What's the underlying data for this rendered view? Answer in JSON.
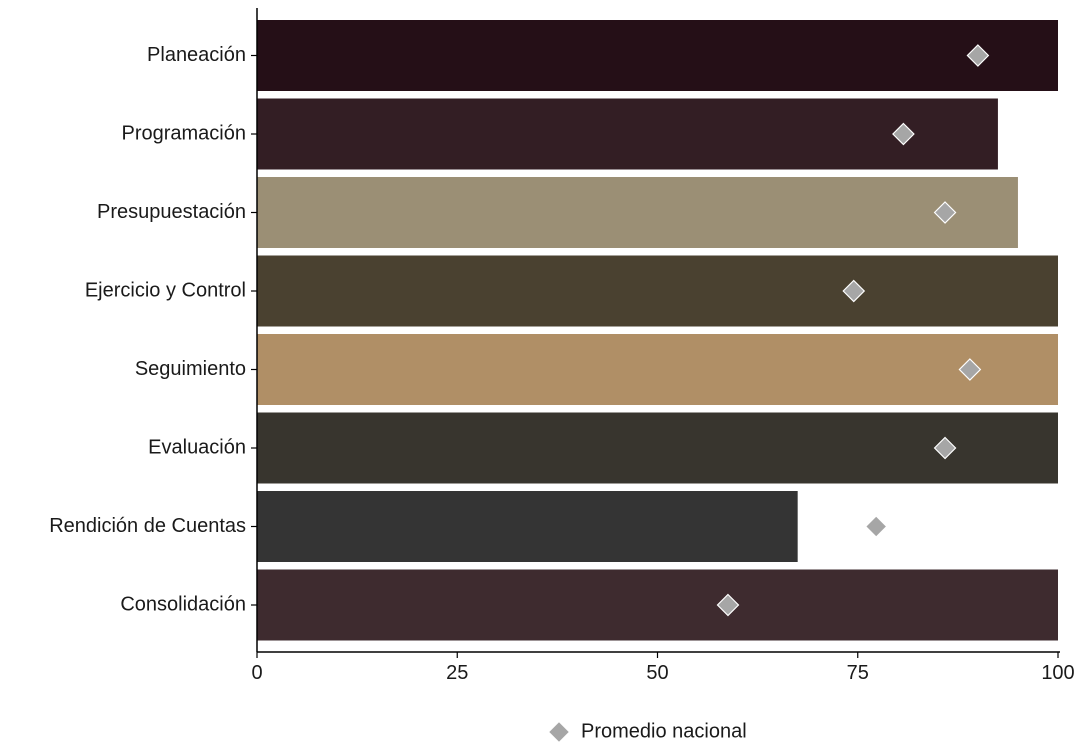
{
  "chart_data": {
    "type": "bar",
    "orientation": "horizontal",
    "categories": [
      "Planeación",
      "Programación",
      "Presupuestación",
      "Ejercicio y Control",
      "Seguimiento",
      "Evaluación",
      "Rendición de Cuentas",
      "Consolidación"
    ],
    "values": [
      100,
      92.5,
      95,
      100,
      100,
      100,
      67.5,
      100
    ],
    "bar_colors": [
      "#250f17",
      "#331e24",
      "#9b8f75",
      "#4a4130",
      "#b08f66",
      "#38352e",
      "#343434",
      "#3e2b2f"
    ],
    "series": [
      {
        "name": "Promedio nacional",
        "type": "marker",
        "marker": "diamond",
        "color": "#a6a6a6",
        "values": [
          90,
          80.7,
          85.9,
          74.5,
          89,
          85.9,
          77.3,
          58.8
        ]
      }
    ],
    "xlim": [
      0,
      100
    ],
    "xticks": [
      0,
      25,
      50,
      75,
      100
    ],
    "xlabel": "",
    "ylabel": "",
    "grid": false,
    "legend": {
      "position": "bottom",
      "label": "Promedio nacional"
    }
  }
}
